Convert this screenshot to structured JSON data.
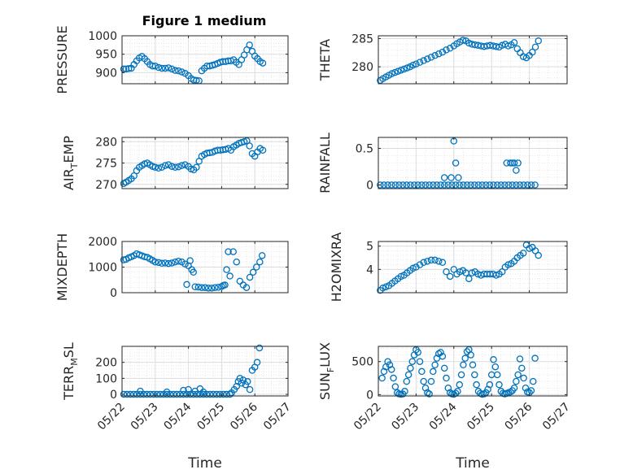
{
  "figure": {
    "title": "Figure 1 medium",
    "marker_color": "#0072BD"
  },
  "chart_data": [
    {
      "type": "scatter",
      "ylabel": "PRESSURE",
      "xlim": [
        0,
        5
      ],
      "ylim": [
        870,
        1000
      ],
      "yticks": [
        900,
        950,
        1000
      ],
      "yticklabels": [
        "900",
        "950",
        "1000"
      ],
      "xticks": [
        0,
        1,
        2,
        3,
        4,
        5
      ],
      "xticklabels": [],
      "grid": true,
      "x": [
        0.05,
        0.12,
        0.2,
        0.28,
        0.36,
        0.44,
        0.52,
        0.6,
        0.68,
        0.76,
        0.84,
        0.92,
        1.0,
        1.1,
        1.2,
        1.3,
        1.4,
        1.5,
        1.6,
        1.7,
        1.8,
        1.9,
        2.0,
        2.08,
        2.16,
        2.24,
        2.32,
        2.4,
        2.48,
        2.56,
        2.64,
        2.72,
        2.8,
        2.88,
        2.96,
        3.04,
        3.12,
        3.2,
        3.28,
        3.36,
        3.44,
        3.52,
        3.6,
        3.68,
        3.76,
        3.84,
        3.92,
        4.0,
        4.08,
        4.16,
        4.24
      ],
      "y": [
        910,
        910,
        911,
        912,
        922,
        932,
        940,
        944,
        938,
        930,
        922,
        918,
        918,
        914,
        912,
        912,
        913,
        910,
        906,
        905,
        902,
        898,
        892,
        884,
        880,
        879,
        878,
        905,
        912,
        918,
        918,
        920,
        922,
        925,
        928,
        930,
        930,
        932,
        932,
        935,
        928,
        922,
        935,
        948,
        962,
        975,
        958,
        945,
        938,
        930,
        926
      ]
    },
    {
      "type": "scatter",
      "ylabel": "THETA",
      "xlim": [
        0,
        5
      ],
      "ylim": [
        277,
        285.5
      ],
      "yticks": [
        280,
        285
      ],
      "yticklabels": [
        "280",
        "285"
      ],
      "xticks": [
        0,
        1,
        2,
        3,
        4,
        5
      ],
      "xticklabels": [],
      "grid": true,
      "x": [
        0.05,
        0.12,
        0.2,
        0.28,
        0.36,
        0.44,
        0.52,
        0.6,
        0.68,
        0.76,
        0.84,
        0.92,
        1.0,
        1.1,
        1.2,
        1.3,
        1.4,
        1.5,
        1.6,
        1.7,
        1.8,
        1.9,
        2.0,
        2.08,
        2.16,
        2.24,
        2.32,
        2.4,
        2.48,
        2.56,
        2.64,
        2.72,
        2.8,
        2.88,
        2.96,
        3.04,
        3.12,
        3.2,
        3.28,
        3.36,
        3.44,
        3.52,
        3.6,
        3.68,
        3.76,
        3.84,
        3.92,
        4.0,
        4.08,
        4.16,
        4.24
      ],
      "y": [
        277.6,
        277.9,
        278.2,
        278.5,
        278.8,
        279.0,
        279.2,
        279.4,
        279.6,
        279.8,
        280.0,
        280.3,
        280.5,
        280.8,
        281.1,
        281.4,
        281.7,
        282.0,
        282.3,
        282.6,
        283.0,
        283.3,
        283.7,
        284.1,
        284.4,
        284.7,
        284.6,
        284.2,
        284.0,
        283.9,
        283.8,
        283.7,
        283.6,
        283.7,
        283.8,
        283.7,
        283.6,
        283.5,
        283.8,
        284.0,
        283.7,
        283.9,
        284.3,
        283.2,
        282.5,
        281.8,
        281.6,
        282.0,
        282.6,
        283.5,
        284.6
      ]
    },
    {
      "type": "scatter",
      "ylabel": "AIR_TEMP",
      "xlim": [
        0,
        5
      ],
      "ylim": [
        269,
        281
      ],
      "yticks": [
        270,
        275,
        280
      ],
      "yticklabels": [
        "270",
        "275",
        "280"
      ],
      "xticks": [
        0,
        1,
        2,
        3,
        4,
        5
      ],
      "xticklabels": [],
      "grid": true,
      "x": [
        0.05,
        0.12,
        0.2,
        0.28,
        0.36,
        0.44,
        0.52,
        0.6,
        0.68,
        0.76,
        0.84,
        0.92,
        1.0,
        1.1,
        1.2,
        1.3,
        1.4,
        1.5,
        1.6,
        1.7,
        1.8,
        1.9,
        2.0,
        2.08,
        2.16,
        2.24,
        2.32,
        2.4,
        2.48,
        2.56,
        2.64,
        2.72,
        2.8,
        2.88,
        2.96,
        3.04,
        3.12,
        3.2,
        3.28,
        3.36,
        3.44,
        3.52,
        3.6,
        3.68,
        3.76,
        3.84,
        3.92,
        4.0,
        4.08,
        4.16,
        4.24
      ],
      "y": [
        270.2,
        270.5,
        270.9,
        271.3,
        272.0,
        273.2,
        274.0,
        274.4,
        274.8,
        275.0,
        274.6,
        274.2,
        274.0,
        273.8,
        274.0,
        274.4,
        274.6,
        274.2,
        274.0,
        274.1,
        274.4,
        274.6,
        274.2,
        273.6,
        273.4,
        274.0,
        275.4,
        276.6,
        277.0,
        277.3,
        277.4,
        277.5,
        277.8,
        278.0,
        278.0,
        278.1,
        278.2,
        278.4,
        278.0,
        278.8,
        279.2,
        279.6,
        279.8,
        280.0,
        280.2,
        279.0,
        277.2,
        276.6,
        277.6,
        278.4,
        278.0
      ]
    },
    {
      "type": "scatter",
      "ylabel": "RAINFALL",
      "xlim": [
        0,
        5
      ],
      "ylim": [
        -0.05,
        0.65
      ],
      "yticks": [
        0,
        0.5
      ],
      "yticklabels": [
        "0",
        "0.5"
      ],
      "xticks": [
        0,
        1,
        2,
        3,
        4,
        5
      ],
      "xticklabels": [],
      "grid": true,
      "x": [
        0.05,
        0.15,
        0.25,
        0.35,
        0.45,
        0.55,
        0.65,
        0.75,
        0.85,
        0.95,
        1.05,
        1.15,
        1.25,
        1.35,
        1.45,
        1.55,
        1.65,
        1.75,
        1.85,
        1.95,
        2.05,
        2.15,
        2.25,
        2.35,
        2.45,
        2.55,
        2.65,
        2.75,
        2.85,
        2.95,
        3.05,
        3.15,
        3.25,
        3.35,
        3.45,
        3.55,
        3.65,
        3.75,
        3.85,
        3.95,
        4.05,
        4.15,
        1.75,
        2.0,
        2.05,
        1.93,
        2.12,
        3.4,
        3.5,
        3.55,
        3.6,
        3.65,
        3.7
      ],
      "y": [
        0,
        0,
        0,
        0,
        0,
        0,
        0,
        0,
        0,
        0,
        0,
        0,
        0,
        0,
        0,
        0,
        0,
        0,
        0,
        0,
        0,
        0,
        0,
        0,
        0,
        0,
        0,
        0,
        0,
        0,
        0,
        0,
        0,
        0,
        0,
        0,
        0,
        0,
        0,
        0,
        0,
        0,
        0.1,
        0.6,
        0.3,
        0.1,
        0.1,
        0.3,
        0.3,
        0.3,
        0.3,
        0.2,
        0.3
      ]
    },
    {
      "type": "scatter",
      "ylabel": "MIXDEPTH",
      "xlim": [
        0,
        5
      ],
      "ylim": [
        0,
        2000
      ],
      "yticks": [
        0,
        1000,
        2000
      ],
      "yticklabels": [
        "0",
        "1000",
        "2000"
      ],
      "xticks": [
        0,
        1,
        2,
        3,
        4,
        5
      ],
      "xticklabels": [],
      "grid": true,
      "x": [
        0.05,
        0.12,
        0.2,
        0.28,
        0.36,
        0.44,
        0.52,
        0.6,
        0.68,
        0.76,
        0.84,
        0.92,
        1.0,
        1.1,
        1.2,
        1.3,
        1.4,
        1.5,
        1.6,
        1.7,
        1.8,
        1.9,
        1.95,
        2.0,
        2.05,
        2.1,
        2.15,
        2.2,
        2.3,
        2.4,
        2.5,
        2.6,
        2.7,
        2.8,
        2.9,
        3.0,
        3.05,
        3.1,
        3.15,
        3.2,
        3.25,
        3.35,
        3.45,
        3.55,
        3.65,
        3.75,
        3.85,
        3.95,
        4.05,
        4.15,
        4.22
      ],
      "y": [
        1280,
        1300,
        1360,
        1400,
        1450,
        1520,
        1480,
        1440,
        1400,
        1380,
        1320,
        1260,
        1200,
        1180,
        1150,
        1160,
        1140,
        1160,
        1200,
        1230,
        1200,
        1120,
        320,
        1050,
        1250,
        900,
        800,
        230,
        220,
        200,
        200,
        180,
        180,
        200,
        210,
        240,
        280,
        300,
        900,
        1600,
        650,
        1600,
        1200,
        450,
        300,
        200,
        600,
        800,
        1000,
        1200,
        1450
      ]
    },
    {
      "type": "scatter",
      "ylabel": "H2OMIXRA",
      "xlim": [
        0,
        5
      ],
      "ylim": [
        3,
        5.2
      ],
      "yticks": [
        4,
        5
      ],
      "yticklabels": [
        "4",
        "5"
      ],
      "xticks": [
        0,
        1,
        2,
        3,
        4,
        5
      ],
      "xticklabels": [],
      "grid": true,
      "x": [
        0.05,
        0.12,
        0.2,
        0.28,
        0.36,
        0.44,
        0.52,
        0.6,
        0.68,
        0.76,
        0.84,
        0.92,
        1.0,
        1.1,
        1.2,
        1.3,
        1.4,
        1.5,
        1.6,
        1.7,
        1.8,
        1.9,
        2.0,
        2.08,
        2.16,
        2.24,
        2.32,
        2.4,
        2.48,
        2.56,
        2.64,
        2.72,
        2.8,
        2.88,
        2.96,
        3.04,
        3.12,
        3.2,
        3.28,
        3.36,
        3.44,
        3.52,
        3.6,
        3.68,
        3.76,
        3.84,
        3.92,
        4.0,
        4.08,
        4.16,
        4.24
      ],
      "y": [
        3.1,
        3.2,
        3.25,
        3.3,
        3.4,
        3.5,
        3.6,
        3.7,
        3.75,
        3.85,
        3.95,
        4.05,
        4.1,
        4.2,
        4.3,
        4.35,
        4.4,
        4.4,
        4.35,
        4.3,
        3.9,
        3.7,
        4.0,
        3.8,
        3.9,
        3.95,
        3.85,
        3.6,
        3.85,
        3.9,
        3.8,
        3.75,
        3.8,
        3.8,
        3.8,
        3.8,
        3.75,
        3.8,
        3.9,
        4.1,
        4.2,
        4.25,
        4.35,
        4.5,
        4.6,
        4.7,
        5.05,
        4.9,
        4.95,
        4.8,
        4.6
      ]
    },
    {
      "type": "scatter",
      "ylabel": "TERR_MSL",
      "xlim": [
        0,
        5
      ],
      "ylim": [
        -10,
        300
      ],
      "yticks": [
        0,
        100,
        200
      ],
      "yticklabels": [
        "0",
        "100",
        "200"
      ],
      "xticks": [
        0,
        1,
        2,
        3,
        4,
        5
      ],
      "xticklabels": [
        "05/22",
        "05/23",
        "05/24",
        "05/25",
        "05/26",
        "05/27"
      ],
      "xlabel": "Time",
      "grid": true,
      "x": [
        0.05,
        0.15,
        0.25,
        0.35,
        0.45,
        0.55,
        0.65,
        0.75,
        0.85,
        0.95,
        1.05,
        1.15,
        1.25,
        1.35,
        1.45,
        1.55,
        1.65,
        1.75,
        1.85,
        1.95,
        2.05,
        2.15,
        2.25,
        2.35,
        2.45,
        2.55,
        2.65,
        2.75,
        2.85,
        2.95,
        3.05,
        3.15,
        3.25,
        0.55,
        1.35,
        1.85,
        2.0,
        2.2,
        2.35,
        2.45,
        3.3,
        3.38,
        3.45,
        3.5,
        3.55,
        3.6,
        3.65,
        3.72,
        3.78,
        3.85,
        3.92,
        4.0,
        4.07,
        4.14
      ],
      "y": [
        0,
        0,
        0,
        0,
        0,
        0,
        0,
        0,
        0,
        0,
        0,
        0,
        0,
        0,
        0,
        0,
        0,
        0,
        0,
        0,
        0,
        0,
        0,
        0,
        0,
        0,
        0,
        0,
        0,
        0,
        0,
        0,
        0,
        20,
        15,
        25,
        30,
        20,
        35,
        15,
        10,
        30,
        50,
        80,
        100,
        70,
        90,
        60,
        80,
        30,
        150,
        170,
        200,
        290
      ]
    },
    {
      "type": "scatter",
      "ylabel": "SUN_FLUX",
      "xlim": [
        0,
        5
      ],
      "ylim": [
        -20,
        730
      ],
      "yticks": [
        0,
        500
      ],
      "yticklabels": [
        "0",
        "500"
      ],
      "xticks": [
        0,
        1,
        2,
        3,
        4,
        5
      ],
      "xticklabels": [
        "05/22",
        "05/23",
        "05/24",
        "05/25",
        "05/26",
        "05/27"
      ],
      "xlabel": "Time",
      "grid": true,
      "x": [
        0.1,
        0.15,
        0.2,
        0.25,
        0.3,
        0.35,
        0.4,
        0.45,
        0.5,
        0.55,
        0.6,
        0.65,
        0.7,
        0.75,
        0.8,
        0.85,
        0.9,
        0.95,
        1.0,
        1.05,
        1.1,
        1.15,
        1.2,
        1.25,
        1.3,
        1.35,
        1.4,
        1.45,
        1.5,
        1.55,
        1.6,
        1.65,
        1.7,
        1.75,
        1.8,
        1.85,
        1.9,
        1.95,
        2.0,
        2.05,
        2.1,
        2.15,
        2.2,
        2.25,
        2.3,
        2.35,
        2.4,
        2.45,
        2.5,
        2.55,
        2.6,
        2.65,
        2.7,
        2.75,
        2.8,
        2.85,
        2.9,
        2.95,
        3.0,
        3.05,
        3.1,
        3.15,
        3.2,
        3.25,
        3.3,
        3.35,
        3.4,
        3.45,
        3.5,
        3.55,
        3.6,
        3.65,
        3.7,
        3.75,
        3.8,
        3.85,
        3.9,
        3.95,
        4.0,
        4.05,
        4.1,
        4.15
      ],
      "y": [
        250,
        350,
        420,
        500,
        450,
        380,
        250,
        120,
        30,
        10,
        5,
        10,
        50,
        200,
        300,
        400,
        500,
        600,
        680,
        640,
        500,
        350,
        200,
        100,
        30,
        10,
        200,
        350,
        450,
        550,
        620,
        640,
        580,
        400,
        250,
        100,
        30,
        10,
        5,
        20,
        50,
        150,
        300,
        450,
        550,
        650,
        680,
        600,
        450,
        300,
        150,
        50,
        20,
        5,
        10,
        30,
        80,
        150,
        300,
        530,
        420,
        300,
        150,
        50,
        20,
        10,
        20,
        30,
        40,
        60,
        100,
        200,
        300,
        540,
        400,
        250,
        100,
        40,
        30,
        60,
        200,
        550
      ]
    }
  ]
}
